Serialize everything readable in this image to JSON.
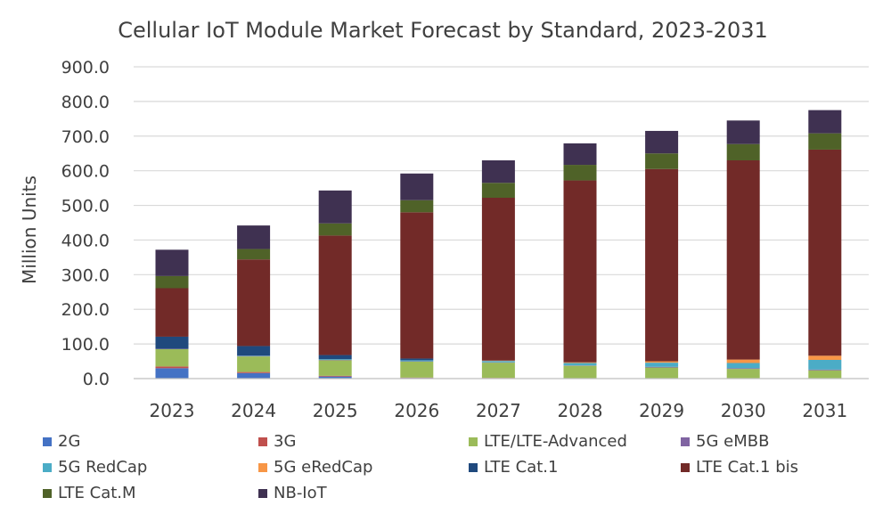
{
  "chart_data": {
    "type": "bar",
    "stacked": true,
    "title": "Cellular IoT Module Market Forecast by Standard, 2023-2031",
    "xlabel": "",
    "ylabel": "Million Units",
    "ylim": [
      0,
      900
    ],
    "yticks": [
      0,
      100,
      200,
      300,
      400,
      500,
      600,
      700,
      800,
      900
    ],
    "ytick_labels": [
      "0.0",
      "100.0",
      "200.0",
      "300.0",
      "400.0",
      "500.0",
      "600.0",
      "700.0",
      "800.0",
      "900.0"
    ],
    "grid": true,
    "legend_position": "bottom",
    "categories": [
      "2023",
      "2024",
      "2025",
      "2026",
      "2027",
      "2028",
      "2029",
      "2030",
      "2031"
    ],
    "series": [
      {
        "name": "2G",
        "color": "#4472C4",
        "values": [
          30,
          16,
          6,
          2,
          1,
          1,
          0,
          0,
          0
        ]
      },
      {
        "name": "3G",
        "color": "#C0504D",
        "values": [
          5,
          3,
          2,
          1,
          1,
          0,
          0,
          0,
          0
        ]
      },
      {
        "name": "LTE/LTE-Advanced",
        "color": "#9BBB59",
        "values": [
          50,
          45,
          45,
          46,
          44,
          36,
          32,
          28,
          24
        ]
      },
      {
        "name": "5G eMBB",
        "color": "#8064A2",
        "values": [
          1,
          1,
          1,
          1,
          1,
          1,
          2,
          2,
          2
        ]
      },
      {
        "name": "5G RedCap",
        "color": "#4BACC6",
        "values": [
          0,
          1,
          2,
          3,
          4,
          7,
          12,
          15,
          28
        ]
      },
      {
        "name": "5G eRedCap",
        "color": "#F79646",
        "values": [
          0,
          0,
          0,
          0,
          1,
          2,
          4,
          10,
          12
        ]
      },
      {
        "name": "LTE Cat.1",
        "color": "#1F497D",
        "values": [
          35,
          28,
          12,
          5,
          0,
          0,
          0,
          0,
          0
        ]
      },
      {
        "name": "LTE Cat.1 bis",
        "color": "#722A28",
        "values": [
          140,
          250,
          345,
          422,
          470,
          525,
          555,
          575,
          595
        ]
      },
      {
        "name": "LTE Cat.M",
        "color": "#4F6228",
        "values": [
          35,
          30,
          35,
          35,
          43,
          45,
          45,
          47,
          47
        ]
      },
      {
        "name": "NB-IoT",
        "color": "#3F3151",
        "values": [
          76,
          68,
          95,
          77,
          65,
          62,
          65,
          68,
          67
        ]
      }
    ]
  }
}
